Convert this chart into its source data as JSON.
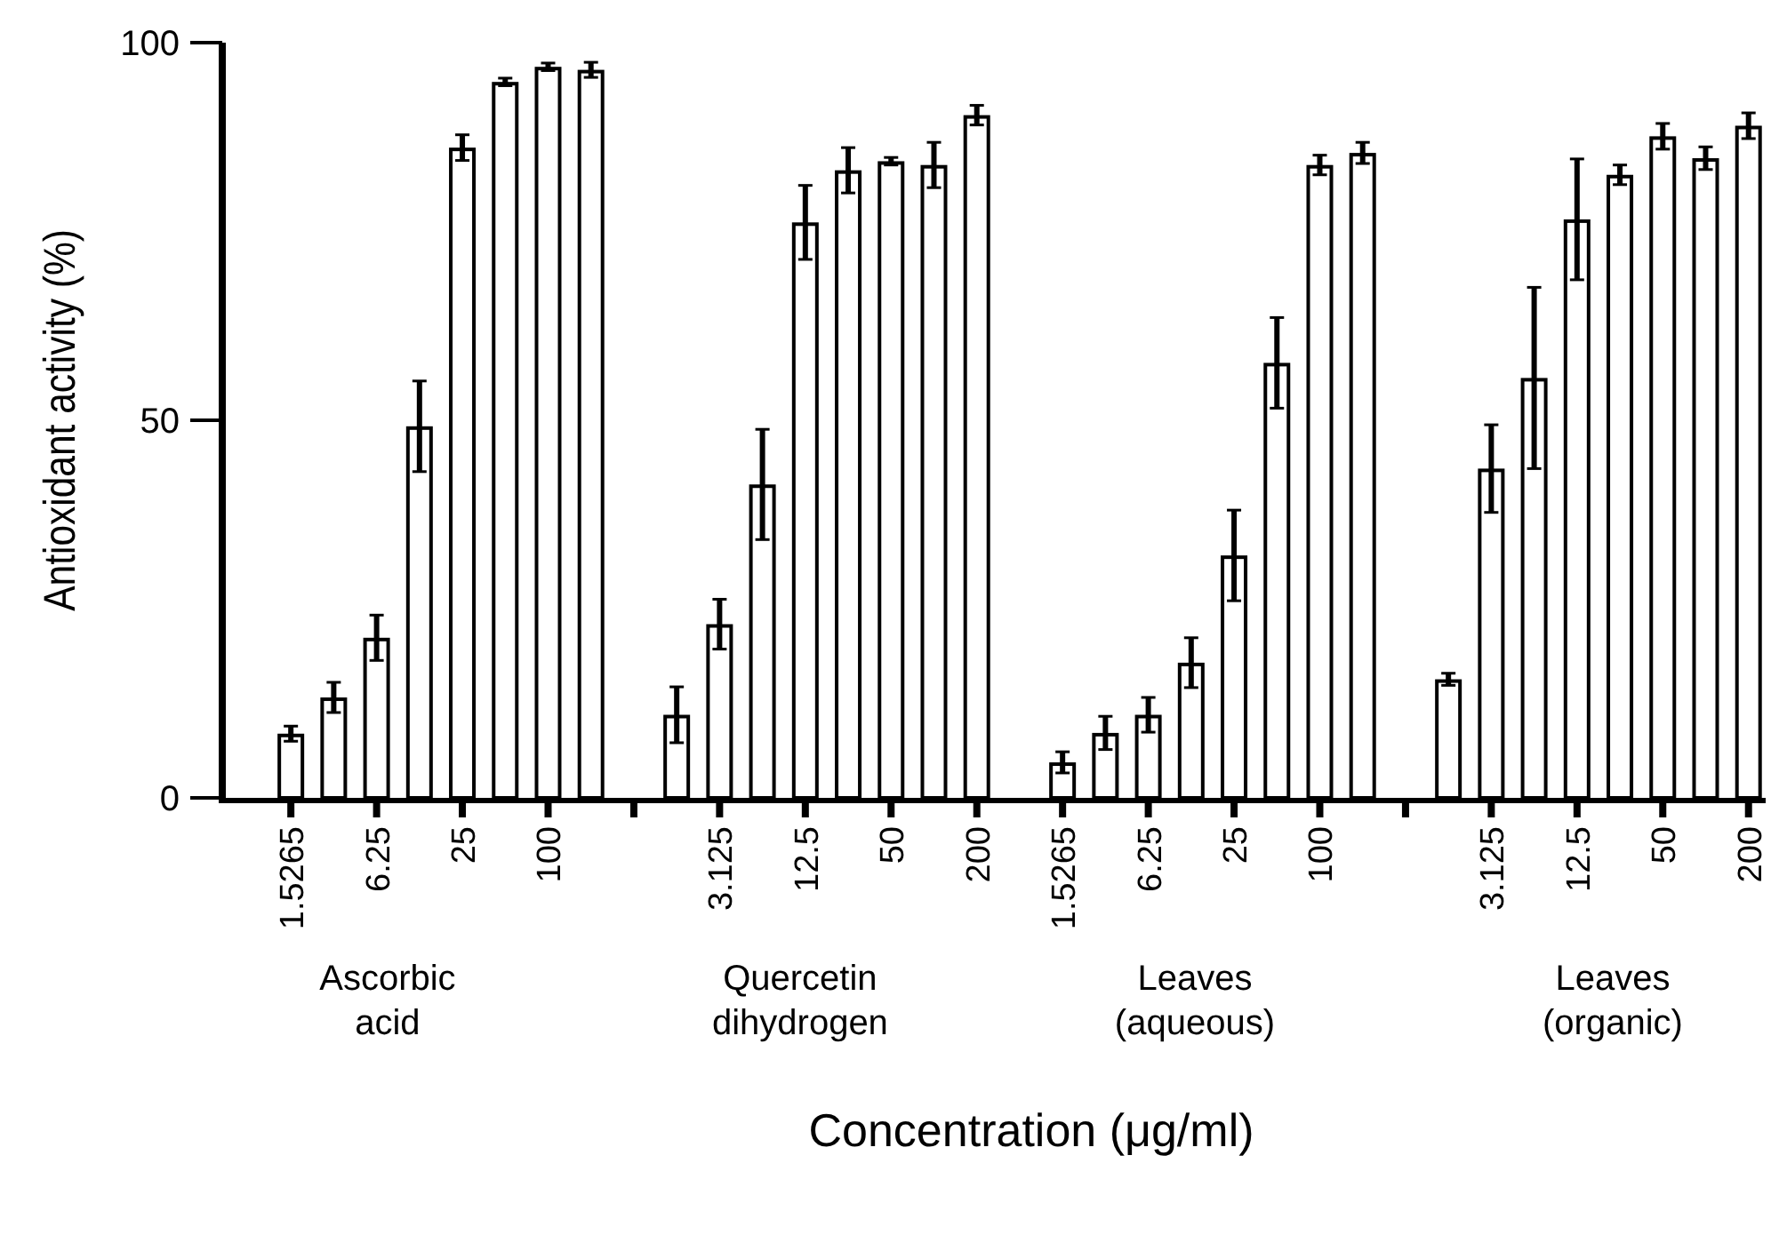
{
  "chart_data": {
    "type": "bar",
    "xlabel": "Concentration (μg/ml)",
    "ylabel": "Antioxidant activity (%)",
    "categories": [
      "1.5265",
      null,
      "6.25",
      null,
      "25",
      null,
      "100",
      null,
      null,
      null,
      "3.125",
      null,
      "12.5",
      null,
      "50",
      null,
      "200",
      null,
      "1.5265",
      null,
      "6.25",
      null,
      "25",
      null,
      "100",
      null,
      null,
      null,
      "3.125",
      null,
      "12.5",
      null,
      "50",
      null,
      "200"
    ],
    "values": [
      8.5,
      13.3,
      21.2,
      49.2,
      86.1,
      94.8,
      96.8,
      96.4,
      null,
      11.0,
      23.0,
      41.5,
      76.2,
      83.1,
      84.3,
      83.8,
      90.4,
      null,
      4.7,
      8.6,
      11.0,
      17.9,
      32.1,
      57.6,
      83.8,
      85.4,
      null,
      15.7,
      43.6,
      55.6,
      76.6,
      82.5,
      87.6,
      84.7,
      89.0
    ],
    "errors": [
      1,
      2,
      3,
      6,
      1.7,
      0.5,
      0.5,
      1,
      null,
      3.7,
      3.3,
      7.3,
      4.9,
      3,
      0.5,
      3,
      1.3,
      null,
      1.4,
      2.2,
      2.3,
      3.3,
      6,
      6,
      1.3,
      1.4,
      null,
      0.8,
      5.8,
      12,
      8,
      1.3,
      1.7,
      1.5,
      1.7
    ],
    "color": "#ffffff",
    "ylim": [
      0,
      100
    ],
    "yticks": [
      0,
      50,
      100
    ],
    "annotations": [
      "Ascorbic acid",
      "Quercetin dihydrogen",
      "Leaves (aqueous)",
      "Leaves (organic)"
    ]
  }
}
